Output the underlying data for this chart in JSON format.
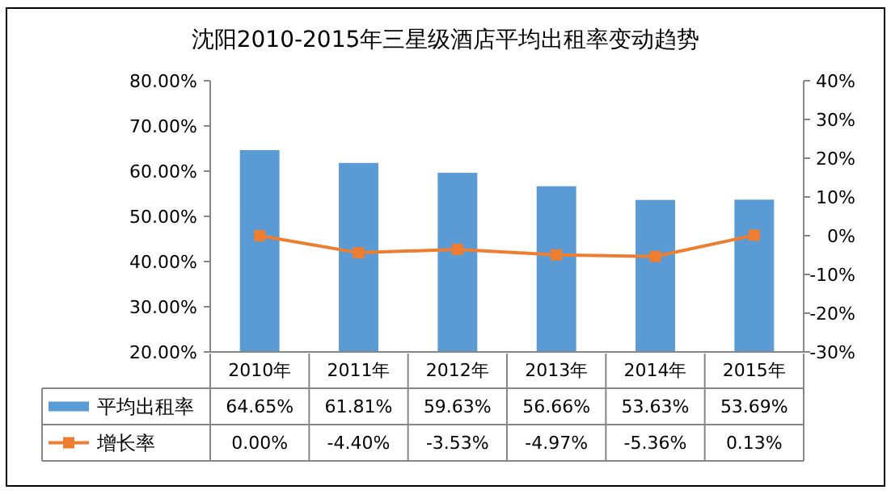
{
  "chart_data": {
    "type": "bar",
    "title": "沈阳2010-2015年三星级酒店平均出租率变动趋势",
    "categories": [
      "2010年",
      "2011年",
      "2012年",
      "2013年",
      "2014年",
      "2015年"
    ],
    "series": [
      {
        "name": "平均出租率",
        "color": "#5b9bd5",
        "values": [
          64.65,
          61.81,
          59.63,
          56.66,
          53.63,
          53.69
        ],
        "value_labels": [
          "64.65%",
          "61.81%",
          "59.63%",
          "56.66%",
          "53.63%",
          "53.69%"
        ]
      },
      {
        "name": "增长率",
        "type": "line",
        "axis": "y2",
        "color": "#ed7d31",
        "marker": "square",
        "values": [
          0,
          -4.4,
          -3.53,
          -4.97,
          -5.36,
          0.13
        ],
        "value_labels": [
          "0.00%",
          "-4.40%",
          "-3.53%",
          "-4.97%",
          "-5.36%",
          "0.13%"
        ]
      }
    ],
    "ylim": [
      20,
      80
    ],
    "yticks": [
      {
        "value": 20,
        "label": "20.00%"
      },
      {
        "value": 30,
        "label": "30.00%"
      },
      {
        "value": 40,
        "label": "40.00%"
      },
      {
        "value": 50,
        "label": "50.00%"
      },
      {
        "value": 60,
        "label": "60.00%"
      },
      {
        "value": 70,
        "label": "70.00%"
      },
      {
        "value": 80,
        "label": "80.00%"
      }
    ],
    "y2lim": [
      -30,
      40
    ],
    "y2ticks": [
      {
        "value": -30,
        "label": "-30%"
      },
      {
        "value": -20,
        "label": "-20%"
      },
      {
        "value": -10,
        "label": "-10%"
      },
      {
        "value": 0,
        "label": "0%"
      },
      {
        "value": 10,
        "label": "10%"
      },
      {
        "value": 20,
        "label": "20%"
      },
      {
        "value": 30,
        "label": "30%"
      },
      {
        "value": 40,
        "label": "40%"
      }
    ],
    "grid": false,
    "legend": "bottom"
  }
}
